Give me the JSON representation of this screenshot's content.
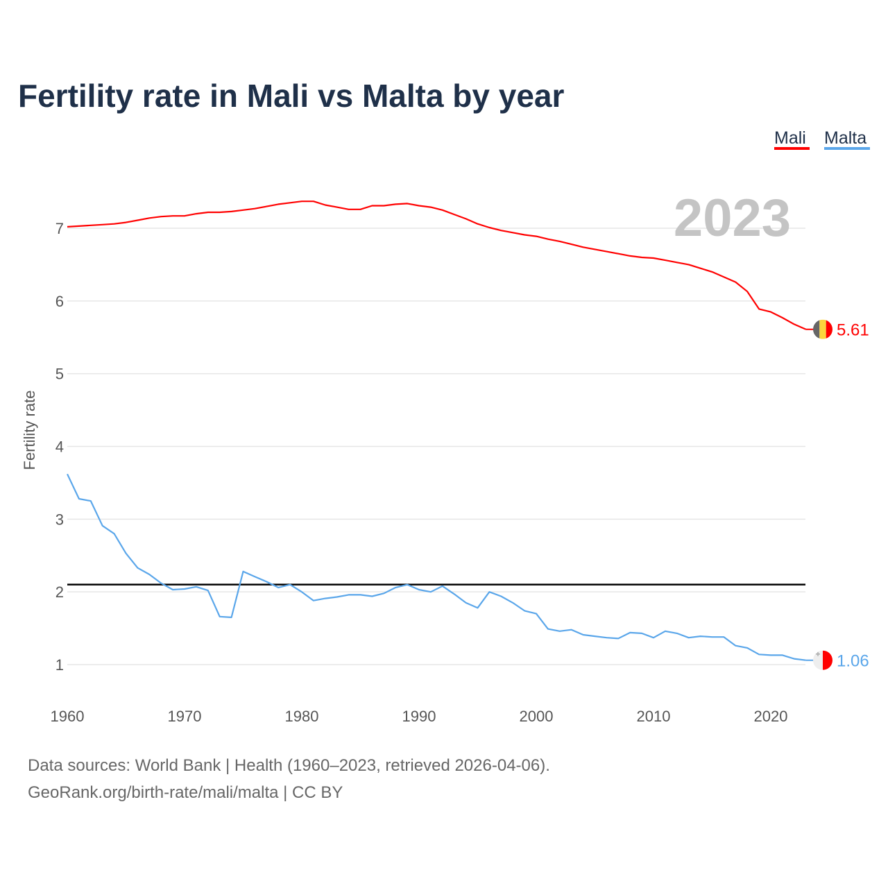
{
  "chart_data": {
    "type": "line",
    "title": "Fertility rate in Mali vs Malta by year",
    "xlabel": "",
    "ylabel": "Fertility rate",
    "xlim": [
      1960,
      2023
    ],
    "ylim": [
      0.5,
      7.8
    ],
    "x_ticks": [
      1960,
      1970,
      1980,
      1990,
      2000,
      2010,
      2020
    ],
    "y_ticks": [
      1,
      2,
      3,
      4,
      5,
      6,
      7
    ],
    "grid": true,
    "legend_placement": "top-right",
    "year_label": "2023",
    "reference_line": 2.1,
    "x": [
      1960,
      1961,
      1962,
      1963,
      1964,
      1965,
      1966,
      1967,
      1968,
      1969,
      1970,
      1971,
      1972,
      1973,
      1974,
      1975,
      1976,
      1977,
      1978,
      1979,
      1980,
      1981,
      1982,
      1983,
      1984,
      1985,
      1986,
      1987,
      1988,
      1989,
      1990,
      1991,
      1992,
      1993,
      1994,
      1995,
      1996,
      1997,
      1998,
      1999,
      2000,
      2001,
      2002,
      2003,
      2004,
      2005,
      2006,
      2007,
      2008,
      2009,
      2010,
      2011,
      2012,
      2013,
      2014,
      2015,
      2016,
      2017,
      2018,
      2019,
      2020,
      2021,
      2022,
      2023
    ],
    "series": [
      {
        "name": "Mali",
        "color": "#ff0000",
        "end_label": "5.61",
        "values": [
          7.02,
          7.03,
          7.04,
          7.05,
          7.06,
          7.08,
          7.11,
          7.14,
          7.16,
          7.17,
          7.17,
          7.2,
          7.22,
          7.22,
          7.23,
          7.25,
          7.27,
          7.3,
          7.33,
          7.35,
          7.37,
          7.37,
          7.32,
          7.29,
          7.26,
          7.26,
          7.31,
          7.31,
          7.33,
          7.34,
          7.31,
          7.29,
          7.25,
          7.19,
          7.13,
          7.06,
          7.01,
          6.97,
          6.94,
          6.91,
          6.89,
          6.85,
          6.82,
          6.78,
          6.74,
          6.71,
          6.68,
          6.65,
          6.62,
          6.6,
          6.59,
          6.56,
          6.53,
          6.5,
          6.45,
          6.4,
          6.33,
          6.26,
          6.13,
          5.89,
          5.85,
          5.77,
          5.68,
          5.61
        ]
      },
      {
        "name": "Malta",
        "color": "#5aa6ea",
        "end_label": "1.06",
        "values": [
          3.62,
          3.28,
          3.25,
          2.91,
          2.8,
          2.53,
          2.33,
          2.24,
          2.12,
          2.03,
          2.04,
          2.07,
          2.02,
          1.66,
          1.65,
          2.28,
          2.21,
          2.14,
          2.06,
          2.1,
          2.0,
          1.88,
          1.91,
          1.93,
          1.96,
          1.96,
          1.94,
          1.98,
          2.06,
          2.1,
          2.03,
          2.0,
          2.08,
          1.97,
          1.85,
          1.78,
          2.0,
          1.94,
          1.85,
          1.74,
          1.7,
          1.49,
          1.46,
          1.48,
          1.41,
          1.39,
          1.37,
          1.36,
          1.44,
          1.43,
          1.37,
          1.46,
          1.43,
          1.37,
          1.39,
          1.38,
          1.38,
          1.26,
          1.23,
          1.14,
          1.13,
          1.13,
          1.08,
          1.06
        ]
      }
    ],
    "source_lines": [
      "Data sources: World Bank | Health (1960–2023, retrieved 2026-04-06).",
      "GeoRank.org/birth-rate/mali/malta | CC BY"
    ]
  }
}
